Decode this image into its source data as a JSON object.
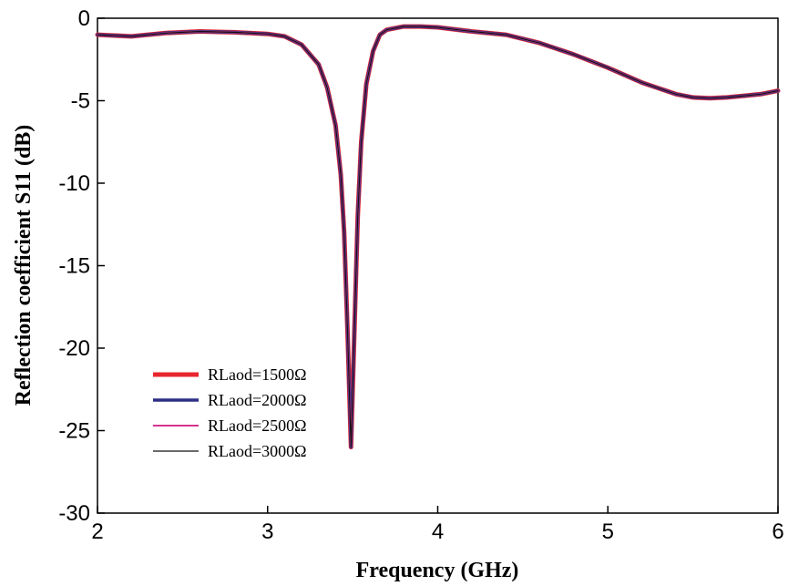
{
  "chart_data": {
    "type": "line",
    "title": "",
    "xlabel": "Frequency (GHz)",
    "ylabel": "Reflection coefficient S11 (dB)",
    "xlim": [
      2,
      6
    ],
    "ylim": [
      -30,
      0
    ],
    "xticks": [
      "2",
      "3",
      "4",
      "5",
      "6"
    ],
    "yticks": [
      "0",
      "-5",
      "-10",
      "-15",
      "-20",
      "-25",
      "-30"
    ],
    "grid": false,
    "legend_position": "lower-left",
    "x": [
      2.0,
      2.2,
      2.4,
      2.6,
      2.8,
      3.0,
      3.1,
      3.2,
      3.3,
      3.35,
      3.4,
      3.43,
      3.45,
      3.47,
      3.49,
      3.51,
      3.53,
      3.55,
      3.58,
      3.62,
      3.66,
      3.7,
      3.8,
      3.9,
      4.0,
      4.2,
      4.4,
      4.6,
      4.8,
      5.0,
      5.2,
      5.4,
      5.5,
      5.6,
      5.7,
      5.8,
      5.9,
      6.0
    ],
    "series": [
      {
        "name": "RLaod=1500Ω",
        "color": "#e8262d",
        "values": [
          -1.0,
          -1.1,
          -0.9,
          -0.8,
          -0.85,
          -0.95,
          -1.1,
          -1.6,
          -2.8,
          -4.2,
          -6.5,
          -9.5,
          -13.0,
          -19.0,
          -26.0,
          -19.0,
          -12.0,
          -7.5,
          -4.0,
          -2.0,
          -1.0,
          -0.7,
          -0.5,
          -0.5,
          -0.55,
          -0.8,
          -1.0,
          -1.5,
          -2.2,
          -3.0,
          -3.9,
          -4.6,
          -4.8,
          -4.85,
          -4.8,
          -4.7,
          -4.6,
          -4.4
        ]
      },
      {
        "name": "RLaod=2000Ω",
        "color": "#2b2f86",
        "values": [
          -1.0,
          -1.1,
          -0.9,
          -0.8,
          -0.85,
          -0.95,
          -1.1,
          -1.6,
          -2.8,
          -4.2,
          -6.5,
          -9.5,
          -13.0,
          -19.0,
          -26.0,
          -19.0,
          -12.0,
          -7.5,
          -4.0,
          -2.0,
          -1.0,
          -0.7,
          -0.5,
          -0.5,
          -0.55,
          -0.8,
          -1.0,
          -1.5,
          -2.2,
          -3.0,
          -3.9,
          -4.6,
          -4.8,
          -4.85,
          -4.8,
          -4.7,
          -4.6,
          -4.4
        ]
      },
      {
        "name": "RLaod=2500Ω",
        "color": "#d6338c",
        "values": [
          -1.0,
          -1.1,
          -0.9,
          -0.8,
          -0.85,
          -0.95,
          -1.1,
          -1.6,
          -2.8,
          -4.2,
          -6.5,
          -9.5,
          -13.0,
          -19.0,
          -26.0,
          -19.0,
          -12.0,
          -7.5,
          -4.0,
          -2.0,
          -1.0,
          -0.7,
          -0.5,
          -0.5,
          -0.55,
          -0.8,
          -1.0,
          -1.5,
          -2.2,
          -3.0,
          -3.9,
          -4.6,
          -4.8,
          -4.85,
          -4.8,
          -4.7,
          -4.6,
          -4.4
        ]
      },
      {
        "name": "RLaod=3000Ω",
        "color": "#111111",
        "values": [
          -1.0,
          -1.1,
          -0.9,
          -0.8,
          -0.85,
          -0.95,
          -1.1,
          -1.6,
          -2.8,
          -4.2,
          -6.5,
          -9.5,
          -13.0,
          -19.0,
          -26.0,
          -19.0,
          -12.0,
          -7.5,
          -4.0,
          -2.0,
          -1.0,
          -0.7,
          -0.5,
          -0.5,
          -0.55,
          -0.8,
          -1.0,
          -1.5,
          -2.2,
          -3.0,
          -3.9,
          -4.6,
          -4.8,
          -4.85,
          -4.8,
          -4.7,
          -4.6,
          -4.4
        ]
      }
    ]
  }
}
